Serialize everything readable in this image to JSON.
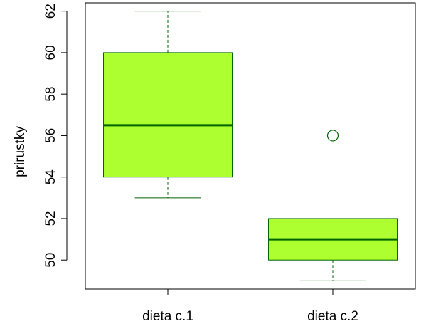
{
  "chart_data": {
    "type": "boxplot",
    "ylabel": "prirustky",
    "xlabel": "",
    "categories": [
      "dieta c.1",
      "dieta c.2"
    ],
    "ylim": [
      48.6,
      62.4
    ],
    "yticks": [
      50,
      52,
      54,
      56,
      58,
      60,
      62
    ],
    "ytick_labels": [
      "50",
      "52",
      "54",
      "56",
      "58",
      "60",
      "62"
    ],
    "boxes": [
      {
        "label": "dieta c.1",
        "whisker_low": 53,
        "q1": 54,
        "median": 56.5,
        "q3": 60,
        "whisker_high": 62,
        "outliers": []
      },
      {
        "label": "dieta c.2",
        "whisker_low": 49,
        "q1": 50,
        "median": 51,
        "q3": 52,
        "whisker_high": 52,
        "outliers": [
          56
        ]
      }
    ],
    "colors": {
      "box_fill": "#adff2f",
      "line": "#006400"
    },
    "grid": false,
    "legend": "none"
  }
}
